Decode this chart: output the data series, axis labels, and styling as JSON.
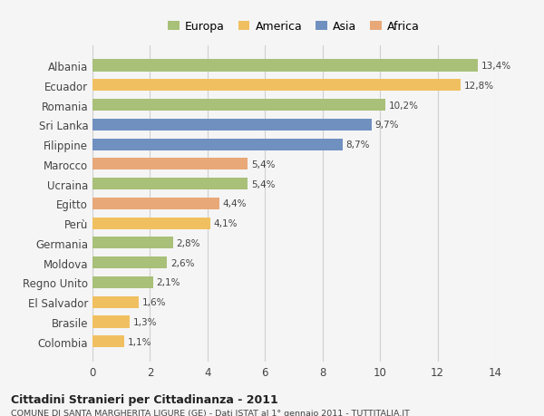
{
  "categories": [
    "Albania",
    "Ecuador",
    "Romania",
    "Sri Lanka",
    "Filippine",
    "Marocco",
    "Ucraina",
    "Egitto",
    "Perù",
    "Germania",
    "Moldova",
    "Regno Unito",
    "El Salvador",
    "Brasile",
    "Colombia"
  ],
  "values": [
    13.4,
    12.8,
    10.2,
    9.7,
    8.7,
    5.4,
    5.4,
    4.4,
    4.1,
    2.8,
    2.6,
    2.1,
    1.6,
    1.3,
    1.1
  ],
  "labels": [
    "13,4%",
    "12,8%",
    "10,2%",
    "9,7%",
    "8,7%",
    "5,4%",
    "5,4%",
    "4,4%",
    "4,1%",
    "2,8%",
    "2,6%",
    "2,1%",
    "1,6%",
    "1,3%",
    "1,1%"
  ],
  "colors": [
    "#a8c078",
    "#f0c060",
    "#a8c078",
    "#7090c0",
    "#7090c0",
    "#e8a878",
    "#a8c078",
    "#e8a878",
    "#f0c060",
    "#a8c078",
    "#a8c078",
    "#a8c078",
    "#f0c060",
    "#f0c060",
    "#f0c060"
  ],
  "legend_labels": [
    "Europa",
    "America",
    "Asia",
    "Africa"
  ],
  "legend_colors": [
    "#a8c078",
    "#f0c060",
    "#7090c0",
    "#e8a878"
  ],
  "title": "Cittadini Stranieri per Cittadinanza - 2011",
  "subtitle": "COMUNE DI SANTA MARGHERITA LIGURE (GE) - Dati ISTAT al 1° gennaio 2011 - TUTTITALIA.IT",
  "xlim": [
    0,
    14
  ],
  "xticks": [
    0,
    2,
    4,
    6,
    8,
    10,
    12,
    14
  ],
  "background_color": "#f5f5f5",
  "grid_color": "#d0d0d0"
}
